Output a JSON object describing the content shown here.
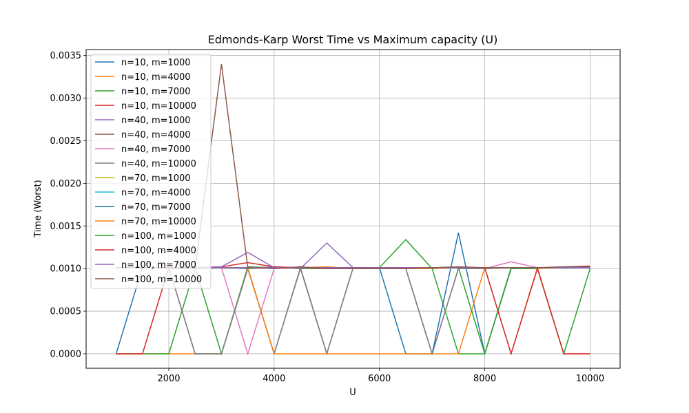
{
  "chart_data": {
    "type": "line",
    "title": "Edmonds-Karp Worst Time vs Maximum capacity (U)",
    "xlabel": "U",
    "ylabel": "Time (Worst)",
    "xlim": [
      430,
      10570
    ],
    "ylim": [
      -0.00017,
      0.00357
    ],
    "xticks": [
      2000,
      4000,
      6000,
      8000,
      10000
    ],
    "xtick_labels": [
      "2000",
      "4000",
      "6000",
      "8000",
      "10000"
    ],
    "yticks": [
      0,
      0.0005,
      0.001,
      0.0015,
      0.002,
      0.0025,
      0.003,
      0.0035
    ],
    "ytick_labels": [
      "0.0000",
      "0.0005",
      "0.0010",
      "0.0015",
      "0.0020",
      "0.0025",
      "0.0030",
      "0.0035"
    ],
    "grid": true,
    "legend_position": "top-left",
    "x": [
      1000,
      1500,
      2000,
      2500,
      3000,
      3500,
      4000,
      4500,
      5000,
      5500,
      6000,
      6500,
      7000,
      7500,
      8000,
      8500,
      9000,
      9500,
      10000
    ],
    "series": [
      {
        "name": "n=10, m=1000",
        "color": "#1f77b4",
        "values": [
          0,
          0.00101,
          0.001,
          0.001,
          0.00101,
          0.001,
          0.00102,
          0.001,
          0.00101,
          0.001,
          0.001,
          0.00101,
          0.001,
          0.00101,
          0.001,
          0.00101,
          0.00101,
          0.00101,
          0.00101
        ]
      },
      {
        "name": "n=10, m=4000",
        "color": "#ff7f0e",
        "values": [
          0,
          0,
          0,
          0,
          0,
          0.00101,
          0.001,
          0.00101,
          0.00102,
          0.001,
          0.00101,
          0.001,
          0.001,
          0.00101,
          0.00101,
          0.00101,
          0.001,
          0.00101,
          0.00101
        ]
      },
      {
        "name": "n=10, m=7000",
        "color": "#2ca02c",
        "values": [
          0,
          0,
          0,
          0.00101,
          0,
          0.00102,
          0.00101,
          0.001,
          0.001,
          0.00101,
          0.00101,
          0.00134,
          0.001,
          0,
          0,
          0.00101,
          0.00101,
          0.00101,
          0.00101
        ]
      },
      {
        "name": "n=10, m=10000",
        "color": "#d62728",
        "values": [
          0,
          0,
          0.00101,
          0.00101,
          0.00102,
          0.00107,
          0.00102,
          0.00101,
          0.001,
          0.001,
          0.001,
          0.001,
          0.00101,
          0.00101,
          0.00101,
          0.00101,
          0.00101,
          0.00101,
          0.00102
        ]
      },
      {
        "name": "n=40, m=1000",
        "color": "#9467bd",
        "values": [
          0.00101,
          0.00101,
          0.00101,
          0.00101,
          0.00102,
          0.00119,
          0.00101,
          0.001,
          0.0013,
          0.00101,
          0.00101,
          0.00101,
          0.00101,
          0.00101,
          0.00101,
          0.00101,
          0.00101,
          0.00101,
          0.00101
        ]
      },
      {
        "name": "n=40, m=4000",
        "color": "#8c564b",
        "values": [
          0.00101,
          0.00101,
          0.00101,
          0,
          0,
          0.001,
          0,
          0.00101,
          0,
          0.00101,
          0.00101,
          0.001,
          0,
          0.001,
          0.001,
          0.00101,
          0.00101,
          0.00101,
          0.00101
        ]
      },
      {
        "name": "n=40, m=7000",
        "color": "#e377c2",
        "values": [
          0.00101,
          0.00101,
          0.00101,
          0.00101,
          0.00101,
          0,
          0.001,
          0.00101,
          0.00101,
          0.00101,
          0.00101,
          0.001,
          0,
          0.001,
          0.001,
          0.00108,
          0.00101,
          0.00101,
          0.00101
        ]
      },
      {
        "name": "n=40, m=10000",
        "color": "#7f7f7f",
        "values": [
          0.00101,
          0.00101,
          0.00101,
          0,
          0,
          0.001,
          0,
          0.001,
          0,
          0.00101,
          0.00101,
          0.001,
          0,
          0.001,
          0.001,
          0.00101,
          0.00101,
          0.00101,
          0.00101
        ]
      },
      {
        "name": "n=70, m=1000",
        "color": "#bcbd22",
        "values": [
          0.00101,
          0.00101,
          0.00101,
          0.00101,
          0.00101,
          0.00101,
          0.00101,
          0.00101,
          0.00101,
          0.00101,
          0.00101,
          0.00101,
          0.00101,
          0.00101,
          0.00101,
          0.00101,
          0.00101,
          0.00101,
          0.00101
        ]
      },
      {
        "name": "n=70, m=4000",
        "color": "#17becf",
        "values": [
          0.00101,
          0.00101,
          0.00101,
          0.00101,
          0.00101,
          0.00101,
          0.00101,
          0.00101,
          0.00101,
          0.00101,
          0.00101,
          0.00101,
          0.00101,
          0.00101,
          0.00101,
          0.00101,
          0.00101,
          0.00101,
          0.00101
        ]
      },
      {
        "name": "n=70, m=7000",
        "color": "#1f77b4",
        "values": [
          0.00101,
          0.00101,
          0.00101,
          0.00101,
          0.00101,
          0.00101,
          0.00101,
          0.00101,
          0.00101,
          0.00101,
          0.00101,
          0,
          0,
          0.00142,
          0,
          0.001,
          0.00101,
          0.00101,
          0.00101
        ]
      },
      {
        "name": "n=70, m=10000",
        "color": "#ff7f0e",
        "values": [
          0.00101,
          0.00101,
          0.00101,
          0.00101,
          0.00101,
          0.00101,
          0,
          0,
          0,
          0,
          0,
          0,
          0,
          0,
          0.00101,
          0,
          0.00101,
          0,
          0
        ]
      },
      {
        "name": "n=100, m=1000",
        "color": "#2ca02c",
        "values": [
          0.00101,
          0.00101,
          0.00101,
          0.00101,
          0.00101,
          0.00101,
          0.00101,
          0.00101,
          0.00101,
          0.00101,
          0.00101,
          0.00101,
          0.00101,
          0.00101,
          0,
          0.001,
          0.001,
          0,
          0.001
        ]
      },
      {
        "name": "n=100, m=4000",
        "color": "#d62728",
        "values": [
          0.00101,
          0.00101,
          0.00101,
          0.00101,
          0.00101,
          0.00101,
          0.00101,
          0.00101,
          0.00101,
          0.00101,
          0.00101,
          0.00101,
          0.00101,
          0.00101,
          0.00101,
          0,
          0.001,
          0,
          0
        ]
      },
      {
        "name": "n=100, m=7000",
        "color": "#9467bd",
        "values": [
          0.00101,
          0.00101,
          0.00101,
          0.00101,
          0.00101,
          0.00101,
          0.00101,
          0.00101,
          0.00101,
          0.00101,
          0.00101,
          0.00101,
          0.00101,
          0.00101,
          0.00101,
          0.00101,
          0.00101,
          0.00101,
          0.00101
        ]
      },
      {
        "name": "n=100, m=10000",
        "color": "#8c564b",
        "values": [
          0.00101,
          0.00101,
          0.00101,
          0.00101,
          0.0034,
          0.00101,
          0.001,
          0.00102,
          0.001,
          0.001,
          0.001,
          0.001,
          0.00101,
          0.00102,
          0.00101,
          0.00101,
          0.00101,
          0.00102,
          0.00103
        ]
      }
    ]
  }
}
